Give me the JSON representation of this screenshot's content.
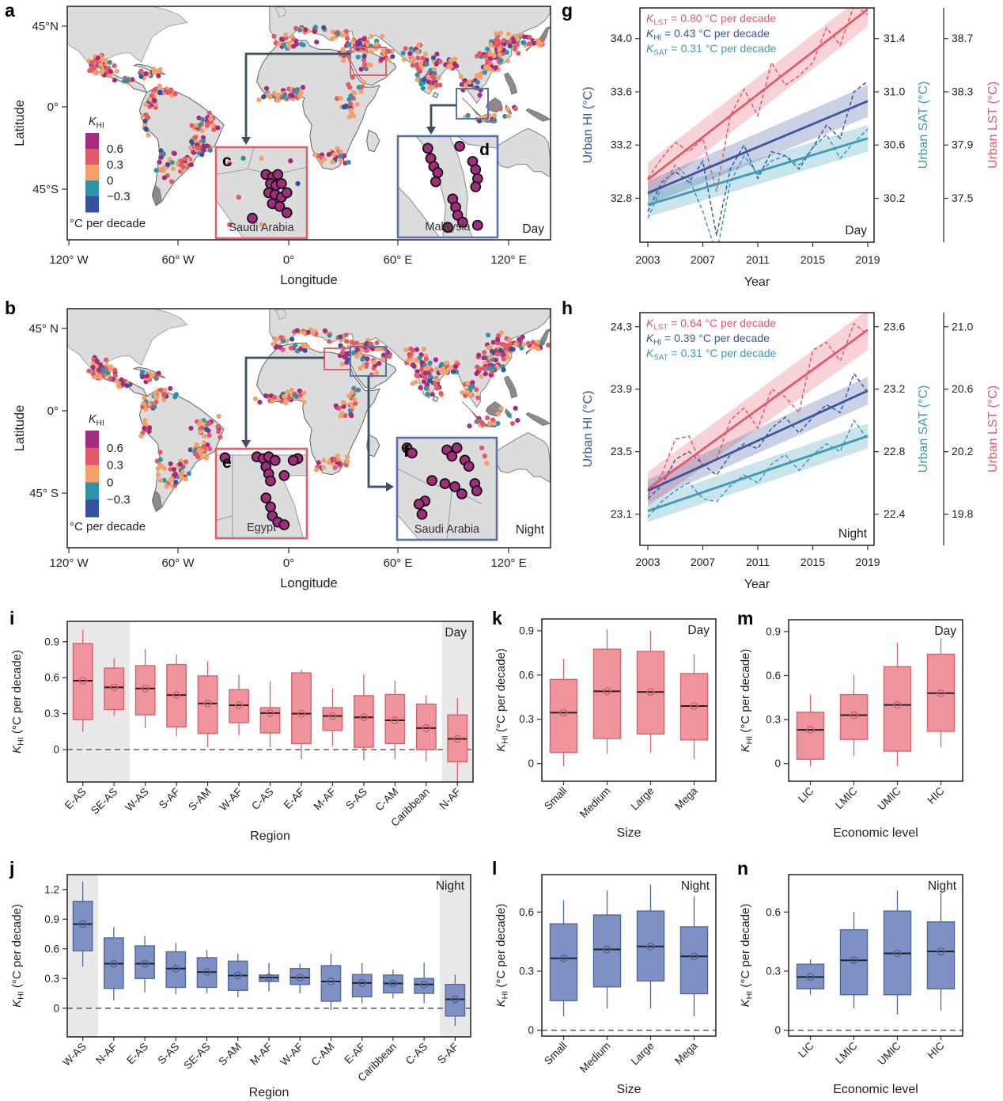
{
  "panels": {
    "a": "a",
    "b": "b",
    "c": "c",
    "d": "d",
    "e": "e",
    "f": "f",
    "g": "g",
    "h": "h",
    "i": "i",
    "j": "j",
    "k": "k",
    "l": "l",
    "m": "m",
    "n": "n"
  },
  "palette": {
    "magenta": "#A32C7E",
    "red": "#E25A68",
    "orange": "#F4A069",
    "teal": "#2E93A8",
    "navy": "#32549E"
  },
  "maps": [
    {
      "id": "a",
      "label": "a",
      "time_label": "Day",
      "xlabel": "Longitude",
      "ylabel": "Latitude",
      "x_ticks": [
        "120° W",
        "60° W",
        "0°",
        "60° E",
        "120° E"
      ],
      "y_ticks": [
        "45°N",
        "0°",
        "45°S"
      ],
      "legend": {
        "k": "K",
        "sub": "HI",
        "labels": [
          "0.6",
          "0.3",
          "0",
          "−0.3"
        ],
        "unit": "°C per decade",
        "colors": [
          "#A32C7E",
          "#E25A68",
          "#F4A069",
          "#2E93A8",
          "#32549E"
        ]
      },
      "insets": [
        {
          "letter": "c",
          "country": "Saudi Arabia",
          "border": "#E0606C"
        },
        {
          "letter": "d",
          "country": "Malaysia",
          "border": "#5872AD"
        }
      ]
    },
    {
      "id": "b",
      "label": "b",
      "time_label": "Night",
      "xlabel": "Longitude",
      "ylabel": "Latitude",
      "x_ticks": [
        "120° W",
        "60° W",
        "0°",
        "60° E",
        "120° E"
      ],
      "y_ticks": [
        "45° N",
        "0°",
        "45° S"
      ],
      "legend": {
        "k": "K",
        "sub": "HI",
        "labels": [
          "0.6",
          "0.3",
          "0",
          "−0.3"
        ],
        "unit": "°C per decade",
        "colors": [
          "#A32C7E",
          "#E25A68",
          "#F4A069",
          "#2E93A8",
          "#32549E"
        ]
      },
      "insets": [
        {
          "letter": "e",
          "country": "Egypt",
          "border": "#E0606C"
        },
        {
          "letter": "f",
          "country": "Saudi Arabia",
          "border": "#5872AD"
        }
      ]
    }
  ],
  "chart_data": [
    {
      "id": "g",
      "type": "line",
      "time_label": "Day",
      "xlabel": "Year",
      "x_ticks": [
        "2003",
        "2007",
        "2011",
        "2015",
        "2019"
      ],
      "x_range": [
        2003,
        2019
      ],
      "axes": [
        {
          "id": "hi",
          "title": "Urban HI (°C)",
          "ticks": [
            "32.8",
            "33.2",
            "33.6",
            "34.0"
          ],
          "range": [
            32.47,
            34.23
          ],
          "color": "#3A56A0",
          "side": "left"
        },
        {
          "id": "sat",
          "title": "Urban SAT (°C)",
          "ticks": [
            "30.2",
            "30.6",
            "31.0",
            "31.4"
          ],
          "range": [
            29.87,
            31.63
          ],
          "color": "#3C9AB5",
          "side": "right"
        },
        {
          "id": "lst",
          "title": "Urban LST (°C)",
          "ticks": [
            "37.5",
            "37.9",
            "38.3",
            "38.7"
          ],
          "range": [
            37.17,
            38.93
          ],
          "color": "#E25A68",
          "side": "right2"
        }
      ],
      "legend": [
        {
          "k": "K",
          "sub": "LST",
          "text": " = 0.80 °C per decade",
          "color": "#E25A68"
        },
        {
          "k": "K",
          "sub": "HI",
          "text": " = 0.43 °C per decade",
          "color": "#3A56A0"
        },
        {
          "k": "K",
          "sub": "SAT",
          "text": " = 0.31 °C per decade",
          "color": "#3C9AB5"
        }
      ],
      "series": [
        {
          "name": "LST",
          "axis": "lst",
          "color": "#E25A68",
          "trend_start": 37.64,
          "trend_end": 38.92,
          "band": [
            0.13,
            0.13
          ],
          "annual": [
            37.65,
            37.8,
            37.92,
            37.85,
            37.95,
            37.55,
            38.12,
            38.32,
            38.12,
            38.52,
            38.35,
            38.42,
            38.52,
            38.78,
            38.65,
            38.95,
            38.88
          ]
        },
        {
          "name": "HI",
          "axis": "hi",
          "color": "#3A56A0",
          "trend_start": 32.84,
          "trend_end": 33.53,
          "band": [
            0.09,
            0.12
          ],
          "annual": [
            32.7,
            32.92,
            33.0,
            32.92,
            33.08,
            32.52,
            33.02,
            33.2,
            32.95,
            33.15,
            33.12,
            33.02,
            33.18,
            33.35,
            33.25,
            33.6,
            33.68
          ]
        },
        {
          "name": "SAT",
          "axis": "sat",
          "color": "#3C9AB5",
          "trend_start": 30.15,
          "trend_end": 30.65,
          "band": [
            0.09,
            0.1
          ],
          "annual": [
            30.05,
            30.28,
            30.45,
            30.35,
            30.1,
            29.78,
            30.32,
            30.52,
            30.38,
            30.48,
            30.52,
            30.45,
            30.58,
            30.68,
            30.5,
            30.62,
            30.72
          ]
        }
      ]
    },
    {
      "id": "h",
      "type": "line",
      "time_label": "Night",
      "xlabel": "Year",
      "x_ticks": [
        "2003",
        "2007",
        "2011",
        "2015",
        "2019"
      ],
      "x_range": [
        2003,
        2019
      ],
      "axes": [
        {
          "id": "hi",
          "title": "Urban HI (°C)",
          "ticks": [
            "23.1",
            "23.5",
            "23.9",
            "24.3"
          ],
          "range": [
            22.9,
            24.39
          ],
          "color": "#3A56A0",
          "side": "left"
        },
        {
          "id": "sat",
          "title": "Urban SAT (°C)",
          "ticks": [
            "22.4",
            "22.8",
            "23.2",
            "23.6"
          ],
          "range": [
            22.2,
            23.69
          ],
          "color": "#3C9AB5",
          "side": "right"
        },
        {
          "id": "lst",
          "title": "Urban LST (°C)",
          "ticks": [
            "19.8",
            "20.2",
            "20.6",
            "21.0"
          ],
          "range": [
            19.6,
            21.09
          ],
          "color": "#E25A68",
          "side": "right2"
        }
      ],
      "legend": [
        {
          "k": "K",
          "sub": "LST",
          "text": " = 0.64 °C per decade",
          "color": "#E25A68"
        },
        {
          "k": "K",
          "sub": "HI",
          "text": " = 0.39 °C per decade",
          "color": "#3A56A0"
        },
        {
          "k": "K",
          "sub": "SAT",
          "text": " = 0.31 °C per decade",
          "color": "#3C9AB5"
        }
      ],
      "series": [
        {
          "name": "LST",
          "axis": "lst",
          "color": "#E25A68",
          "trend_start": 19.96,
          "trend_end": 20.98,
          "band": [
            0.11,
            0.13
          ],
          "annual": [
            19.92,
            20.05,
            20.28,
            20.3,
            20.1,
            20.15,
            20.4,
            20.48,
            20.35,
            20.6,
            20.55,
            20.45,
            20.85,
            20.9,
            20.78,
            21.02,
            20.95
          ]
        },
        {
          "name": "HI",
          "axis": "hi",
          "color": "#3A56A0",
          "trend_start": 23.25,
          "trend_end": 23.89,
          "band": [
            0.07,
            0.09
          ],
          "annual": [
            23.2,
            23.28,
            23.45,
            23.5,
            23.42,
            23.35,
            23.48,
            23.55,
            23.52,
            23.65,
            23.72,
            23.62,
            23.72,
            23.8,
            23.75,
            24.0,
            23.88
          ]
        },
        {
          "name": "SAT",
          "axis": "sat",
          "color": "#3C9AB5",
          "trend_start": 22.42,
          "trend_end": 22.9,
          "band": [
            0.07,
            0.08
          ],
          "annual": [
            22.38,
            22.48,
            22.55,
            22.6,
            22.5,
            22.48,
            22.58,
            22.65,
            22.6,
            22.72,
            22.78,
            22.68,
            22.78,
            22.85,
            22.8,
            23.0,
            22.88
          ]
        }
      ]
    },
    {
      "id": "i",
      "type": "box",
      "time_label": "Day",
      "xlabel": "Region",
      "ylabel": {
        "k": "K",
        "sub": "HI",
        "rest": " (°C per decade)"
      },
      "yticks": [
        "0",
        "0.3",
        "0.6",
        "0.9"
      ],
      "ylim": [
        -0.27,
        1.07
      ],
      "zero_line": true,
      "highlights": [
        0,
        1,
        12
      ],
      "categories": [
        "E-AS",
        "SE-AS",
        "W-AS",
        "S-AF",
        "S-AM",
        "W-AF",
        "C-AS",
        "E-AF",
        "M-AF",
        "S-AS",
        "C-AM",
        "Caribbean",
        "N-AF"
      ],
      "stats": [
        [
          0.15,
          0.25,
          0.575,
          0.885,
          1.0
        ],
        [
          0.28,
          0.335,
          0.52,
          0.68,
          0.765
        ],
        [
          0.18,
          0.29,
          0.51,
          0.7,
          0.84
        ],
        [
          0.11,
          0.19,
          0.455,
          0.71,
          0.795
        ],
        [
          0.02,
          0.135,
          0.385,
          0.615,
          0.74
        ],
        [
          0.12,
          0.225,
          0.37,
          0.5,
          0.625
        ],
        [
          0.02,
          0.14,
          0.305,
          0.35,
          0.57
        ],
        [
          -0.08,
          0.05,
          0.3,
          0.64,
          0.665
        ],
        [
          0.03,
          0.16,
          0.28,
          0.35,
          0.51
        ],
        [
          -0.09,
          0.02,
          0.27,
          0.45,
          0.63
        ],
        [
          -0.08,
          0.05,
          0.245,
          0.46,
          0.575
        ],
        [
          -0.1,
          0.0,
          0.18,
          0.38,
          0.455
        ],
        [
          -0.28,
          -0.1,
          0.09,
          0.29,
          0.43
        ]
      ],
      "fill": "#EF949C",
      "edge": "#D8636F"
    },
    {
      "id": "j",
      "type": "box",
      "time_label": "Night",
      "xlabel": "Region",
      "ylabel": {
        "k": "K",
        "sub": "HI",
        "rest": " (°C per decade)"
      },
      "yticks": [
        "0",
        "0.3",
        "0.6",
        "0.9",
        "1.2"
      ],
      "ylim": [
        -0.29,
        1.35
      ],
      "zero_line": true,
      "highlights": [
        0,
        12
      ],
      "categories": [
        "W-AS",
        "N-AF",
        "E-AS",
        "S-AS",
        "SE-AS",
        "S-AM",
        "M-AF",
        "W-AF",
        "C-AM",
        "E-AF",
        "Caribbean",
        "C-AS",
        "S-AF"
      ],
      "stats": [
        [
          0.42,
          0.58,
          0.85,
          1.08,
          1.28
        ],
        [
          0.08,
          0.2,
          0.45,
          0.71,
          0.82
        ],
        [
          0.16,
          0.3,
          0.45,
          0.63,
          0.73
        ],
        [
          0.14,
          0.21,
          0.4,
          0.57,
          0.66
        ],
        [
          0.15,
          0.21,
          0.365,
          0.51,
          0.59
        ],
        [
          0.11,
          0.18,
          0.33,
          0.475,
          0.55
        ],
        [
          0.17,
          0.27,
          0.31,
          0.335,
          0.455
        ],
        [
          0.15,
          0.24,
          0.31,
          0.4,
          0.45
        ],
        [
          -0.02,
          0.07,
          0.27,
          0.43,
          0.55
        ],
        [
          0.05,
          0.115,
          0.255,
          0.34,
          0.455
        ],
        [
          0.1,
          0.155,
          0.25,
          0.335,
          0.39
        ],
        [
          0.05,
          0.15,
          0.24,
          0.3,
          0.46
        ],
        [
          -0.18,
          -0.08,
          0.09,
          0.24,
          0.34
        ]
      ],
      "fill": "#7E90C4",
      "edge": "#52699F"
    },
    {
      "id": "k",
      "type": "box",
      "time_label": "Day",
      "xlabel": "Size",
      "ylabel": {
        "k": "K",
        "sub": "HI",
        "rest": " (°C per decade)"
      },
      "yticks": [
        "0",
        "0.3",
        "0.6",
        "0.9"
      ],
      "ylim": [
        -0.12,
        0.98
      ],
      "zero_line": false,
      "highlights": [],
      "categories": [
        "Small",
        "Medium",
        "Large",
        "Mega"
      ],
      "stats": [
        [
          -0.02,
          0.075,
          0.345,
          0.57,
          0.71
        ],
        [
          0.065,
          0.17,
          0.49,
          0.775,
          0.91
        ],
        [
          0.075,
          0.2,
          0.485,
          0.76,
          0.9
        ],
        [
          0.03,
          0.16,
          0.39,
          0.61,
          0.74
        ]
      ],
      "fill": "#EF949C",
      "edge": "#D8636F"
    },
    {
      "id": "l",
      "type": "box",
      "time_label": "Night",
      "xlabel": "Size",
      "ylabel": {
        "k": "K",
        "sub": "HI",
        "rest": " (°C per decade)"
      },
      "yticks": [
        "0",
        "0.3",
        "0.6"
      ],
      "ylim": [
        -0.03,
        0.79
      ],
      "zero_line": true,
      "highlights": [],
      "categories": [
        "Small",
        "Medium",
        "Large",
        "Mega"
      ],
      "stats": [
        [
          0.07,
          0.15,
          0.365,
          0.54,
          0.66
        ],
        [
          0.11,
          0.22,
          0.41,
          0.585,
          0.71
        ],
        [
          0.11,
          0.25,
          0.425,
          0.605,
          0.74
        ],
        [
          0.07,
          0.185,
          0.375,
          0.525,
          0.68
        ]
      ],
      "fill": "#7E90C4",
      "edge": "#52699F"
    },
    {
      "id": "m",
      "type": "box",
      "time_label": "Day",
      "xlabel": "Economic level",
      "ylabel": {
        "k": "K",
        "sub": "HI",
        "rest": " (°C per decade)"
      },
      "yticks": [
        "0",
        "0.3",
        "0.6",
        "0.9"
      ],
      "ylim": [
        -0.12,
        0.98
      ],
      "zero_line": false,
      "highlights": [],
      "categories": [
        "LIC",
        "LMIC",
        "UMIC",
        "HIC"
      ],
      "stats": [
        [
          -0.02,
          0.03,
          0.23,
          0.35,
          0.47
        ],
        [
          0.05,
          0.165,
          0.33,
          0.47,
          0.605
        ],
        [
          -0.02,
          0.085,
          0.4,
          0.66,
          0.825
        ],
        [
          0.11,
          0.22,
          0.48,
          0.745,
          0.855
        ]
      ],
      "fill": "#EF949C",
      "edge": "#D8636F"
    },
    {
      "id": "n",
      "type": "box",
      "time_label": "Night",
      "xlabel": "Economic level",
      "ylabel": {
        "k": "K",
        "sub": "HI",
        "rest": " (°C per decade)"
      },
      "yticks": [
        "0",
        "0.3",
        "0.6"
      ],
      "ylim": [
        -0.03,
        0.79
      ],
      "zero_line": true,
      "highlights": [],
      "categories": [
        "LIC",
        "LMIC",
        "UMIC",
        "HIC"
      ],
      "stats": [
        [
          0.18,
          0.21,
          0.27,
          0.335,
          0.36
        ],
        [
          0.11,
          0.18,
          0.355,
          0.51,
          0.6
        ],
        [
          0.08,
          0.18,
          0.39,
          0.605,
          0.71
        ],
        [
          0.1,
          0.21,
          0.4,
          0.55,
          0.71
        ]
      ],
      "fill": "#7E90C4",
      "edge": "#52699F"
    }
  ]
}
